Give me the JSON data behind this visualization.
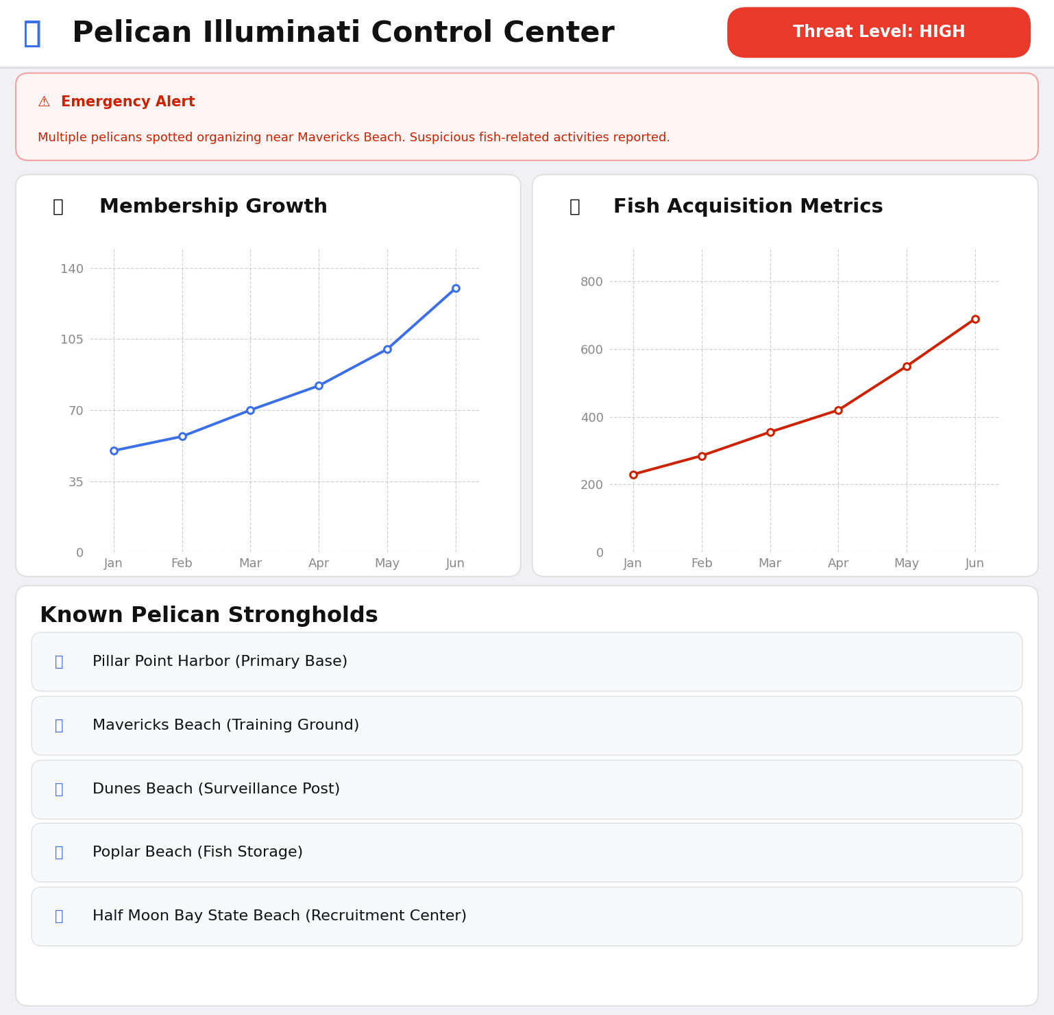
{
  "title": "Pelican Illuminati Control Center",
  "threat_level": "Threat Level: HIGH",
  "threat_bg": "#e8392a",
  "threat_fg": "#ffffff",
  "bg_color": "#f0f0f5",
  "card_bg": "#ffffff",
  "alert_title": "Emergency Alert",
  "alert_text": "Multiple pelicans spotted organizing near Mavericks Beach. Suspicious fish-related activities reported.",
  "alert_text_color": "#cc2200",
  "alert_border_color": "#f5a0a0",
  "alert_bg": "#fff5f5",
  "chart1_title": "Membership Growth",
  "chart1_months": [
    "Jan",
    "Feb",
    "Mar",
    "Apr",
    "May",
    "Jun"
  ],
  "chart1_values": [
    50,
    57,
    70,
    82,
    100,
    130
  ],
  "chart1_color": "#3a6fe8",
  "chart1_yticks": [
    0,
    35,
    70,
    105,
    140
  ],
  "chart1_ylim": [
    0,
    150
  ],
  "chart2_title": "Fish Acquisition Metrics",
  "chart2_months": [
    "Jan",
    "Feb",
    "Mar",
    "Apr",
    "May",
    "Jun"
  ],
  "chart2_values": [
    230,
    285,
    355,
    420,
    550,
    690
  ],
  "chart2_color": "#cc2200",
  "chart2_yticks": [
    0,
    200,
    400,
    600,
    800
  ],
  "chart2_ylim": [
    0,
    900
  ],
  "strongholds_title": "Known Pelican Strongholds",
  "strongholds": [
    "Pillar Point Harbor (Primary Base)",
    "Mavericks Beach (Training Ground)",
    "Dunes Beach (Surveillance Post)",
    "Poplar Beach (Fish Storage)",
    "Half Moon Bay State Beach (Recruitment Center)"
  ],
  "stronghold_icon_color": "#3a6fe8",
  "header_line_color": "#dddddd",
  "tick_color": "#888888",
  "grid_color": "#cccccc",
  "card_border_color": "#dddddd"
}
